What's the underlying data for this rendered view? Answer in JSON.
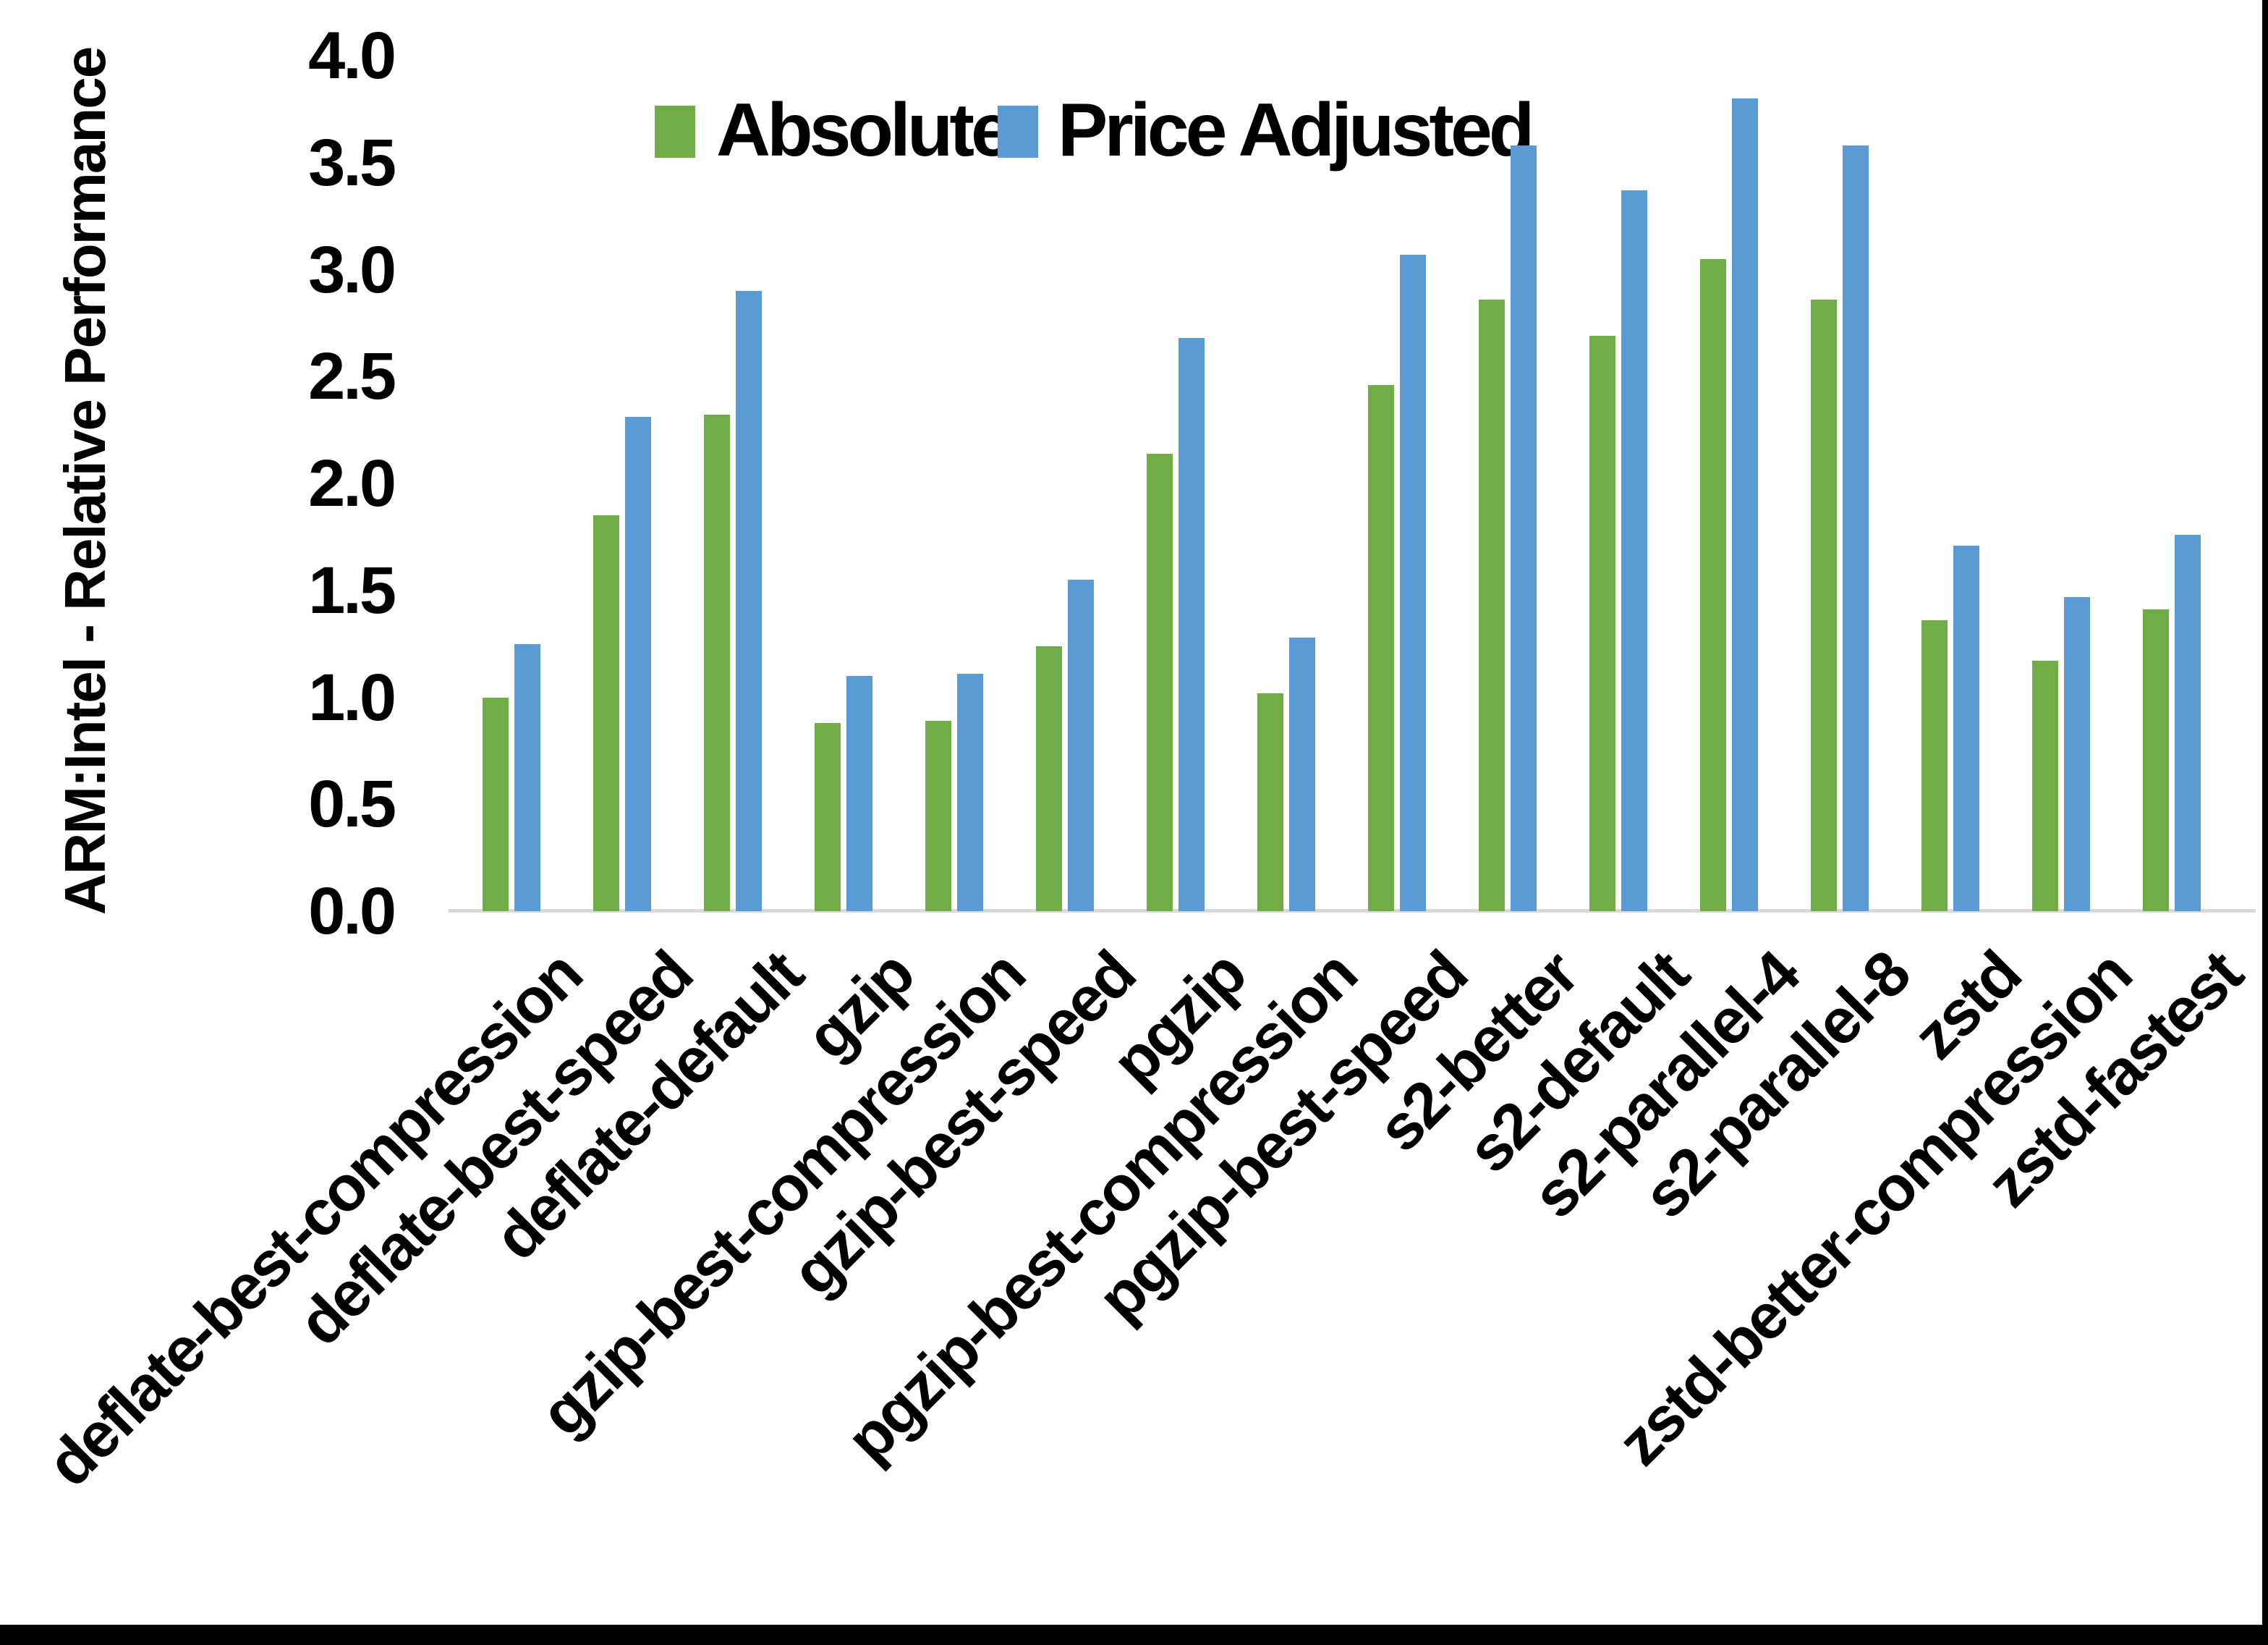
{
  "chart_data": {
    "type": "bar",
    "title": "",
    "xlabel": "",
    "ylabel": "ARM:Intel - Relative Performance",
    "ylim": [
      0.0,
      4.0
    ],
    "ytick_step": 0.5,
    "yticks": [
      "0.0",
      "0.5",
      "1.0",
      "1.5",
      "2.0",
      "2.5",
      "3.0",
      "3.5",
      "4.0"
    ],
    "grid": false,
    "legend_position": "top-center",
    "categories": [
      "deflate-best-compression",
      "deflate-best-speed",
      "deflate-default",
      "gzip",
      "gzip-best-compression",
      "gzip-best-speed",
      "pgzip",
      "pgzip-best-compression",
      "pgzip-best-speed",
      "s2-better",
      "s2-default",
      "s2-parallel-4",
      "s2-parallel-8",
      "zstd",
      "zstd-better-compression",
      "zstd-fastest"
    ],
    "series": [
      {
        "name": "Absolute",
        "color": "#70AD47",
        "values": [
          1.0,
          1.85,
          2.32,
          0.88,
          0.89,
          1.24,
          2.14,
          1.02,
          2.46,
          2.86,
          2.69,
          3.05,
          2.86,
          1.36,
          1.17,
          1.41
        ]
      },
      {
        "name": "Price Adjusted",
        "color": "#5B9BD5",
        "values": [
          1.25,
          2.31,
          2.9,
          1.1,
          1.11,
          1.55,
          2.68,
          1.28,
          3.07,
          3.58,
          3.37,
          3.8,
          3.58,
          1.71,
          1.47,
          1.76
        ]
      }
    ]
  },
  "colors": {
    "axis_line": "#D9D9D9",
    "text": "#000000",
    "frame_border": "#000000",
    "background": "#FFFFFF"
  }
}
